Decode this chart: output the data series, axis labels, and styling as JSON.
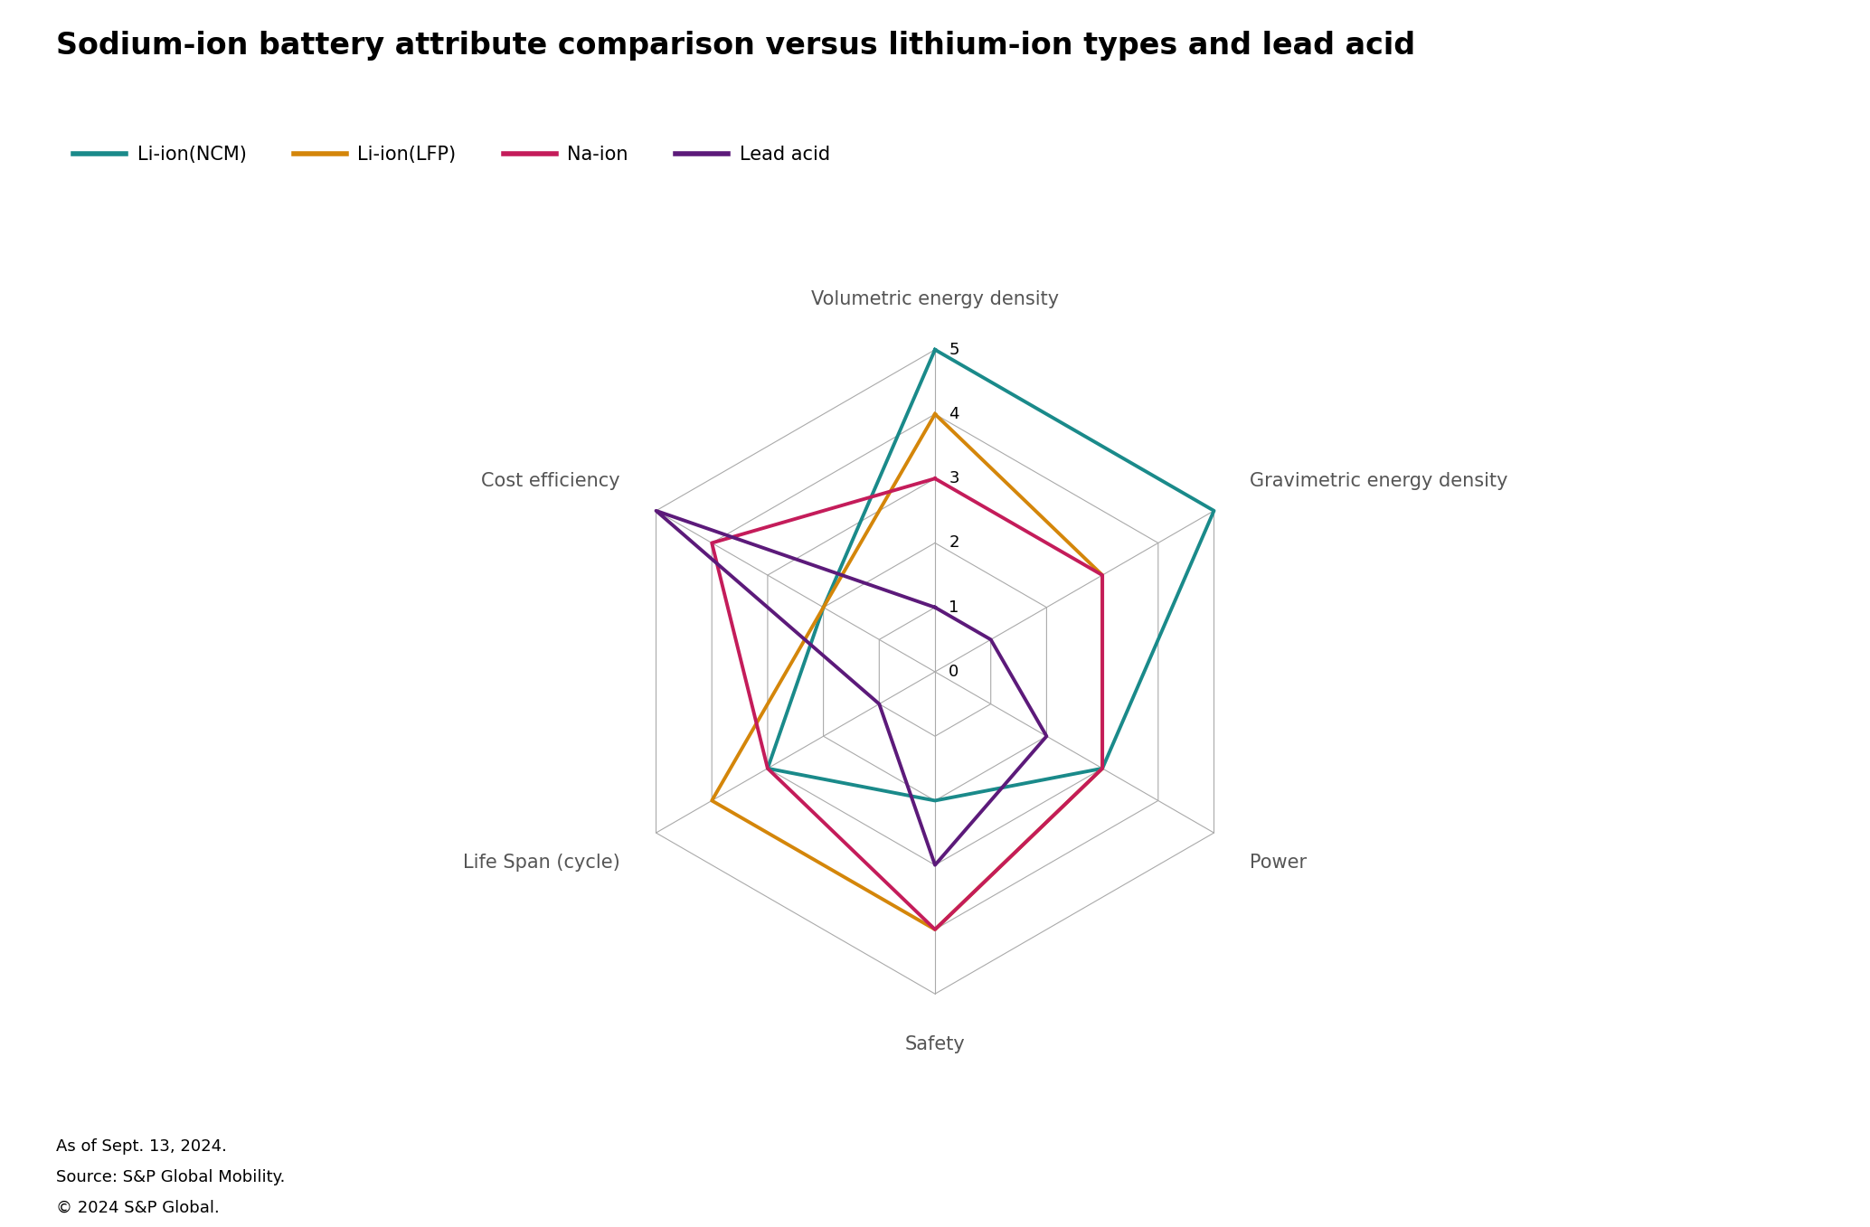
{
  "title": "Sodium-ion battery attribute comparison versus lithium-ion types and lead acid",
  "categories": [
    "Volumetric energy density",
    "Gravimetric energy density",
    "Power",
    "Safety",
    "Life Span (cycle)",
    "Cost efficiency"
  ],
  "series": [
    {
      "name": "Li-ion(NCM)",
      "color": "#1a8a8a",
      "values": [
        5,
        5,
        3,
        2,
        3,
        2
      ]
    },
    {
      "name": "Li-ion(LFP)",
      "color": "#d4860a",
      "values": [
        4,
        3,
        3,
        4,
        4,
        2
      ]
    },
    {
      "name": "Na-ion",
      "color": "#c41c5a",
      "values": [
        3,
        3,
        3,
        4,
        3,
        4
      ]
    },
    {
      "name": "Lead acid",
      "color": "#5c1a7a",
      "values": [
        1,
        1,
        2,
        3,
        1,
        5
      ]
    }
  ],
  "rmax": 5,
  "rticks": [
    0,
    1,
    2,
    3,
    4,
    5
  ],
  "line_width": 2.8,
  "grid_color": "#aaaaaa",
  "label_fontsize": 15,
  "tick_fontsize": 13,
  "title_fontsize": 24,
  "legend_fontsize": 15,
  "footer_lines": [
    "As of Sept. 13, 2024.",
    "Source: S&P Global Mobility.",
    "© 2024 S&P Global."
  ],
  "footer_fontsize": 13,
  "background_color": "#ffffff"
}
